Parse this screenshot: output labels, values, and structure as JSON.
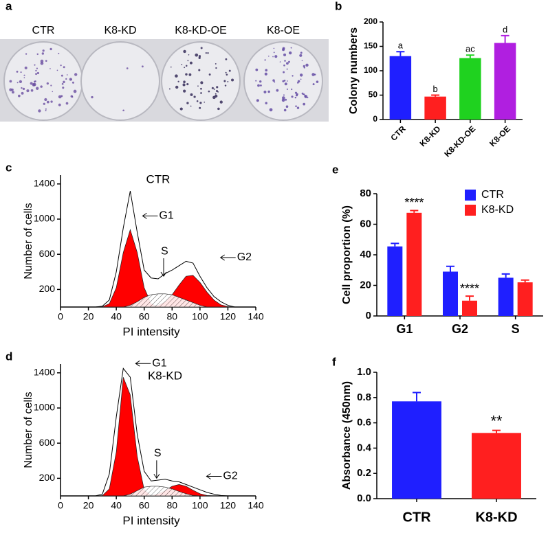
{
  "chart_data": [
    {
      "type": "image",
      "label": "a",
      "categories": [
        "CTR",
        "K8-KD",
        "K8-KD-OE",
        "K8-OE"
      ]
    },
    {
      "type": "bar",
      "label": "b",
      "ylabel": "Colony numbers",
      "categories": [
        "CTR",
        "K8-KD",
        "K8-KD-OE",
        "K8-OE"
      ],
      "values": [
        130,
        47,
        126,
        157
      ],
      "errors": [
        9,
        3,
        6,
        15
      ],
      "colors": [
        "#1f1fff",
        "#ff1f1f",
        "#1fd21f",
        "#b01fe0"
      ],
      "annotations": [
        "a",
        "b",
        "ac",
        "d"
      ],
      "ylim": [
        0,
        200
      ],
      "yticks": [
        0,
        50,
        100,
        150,
        200
      ]
    },
    {
      "type": "area",
      "label": "c",
      "title": "CTR",
      "xlabel": "PI intensity",
      "ylabel": "Number of cells",
      "x": [
        25,
        30,
        35,
        40,
        45,
        50,
        55,
        60,
        65,
        70,
        75,
        80,
        85,
        90,
        95,
        100,
        105,
        110,
        115,
        120,
        125
      ],
      "series": [
        {
          "color": "#000000",
          "values": [
            0,
            10,
            80,
            400,
            900,
            1320,
            850,
            420,
            330,
            320,
            380,
            420,
            470,
            520,
            500,
            350,
            220,
            120,
            60,
            20,
            0
          ]
        },
        {
          "name": "G1",
          "color": "#ff0000",
          "values": [
            0,
            3,
            38,
            220,
            620,
            880,
            620,
            220,
            38,
            3,
            0,
            0,
            0,
            0,
            0,
            0,
            0,
            0,
            0,
            0,
            0
          ]
        },
        {
          "name": "S",
          "color": "#ffffff",
          "pattern": "hatch",
          "values": [
            0,
            0,
            0,
            0,
            0,
            20,
            60,
            110,
            140,
            150,
            150,
            140,
            110,
            80,
            50,
            20,
            0,
            0,
            0,
            0,
            0
          ]
        },
        {
          "name": "G2",
          "color": "#ff0000",
          "values": [
            0,
            0,
            0,
            0,
            0,
            0,
            0,
            0,
            0,
            20,
            60,
            140,
            250,
            350,
            360,
            280,
            170,
            80,
            25,
            5,
            0
          ]
        }
      ],
      "xlim": [
        0,
        140
      ],
      "xticks": [
        0,
        20,
        40,
        60,
        80,
        100,
        120,
        140
      ],
      "ylim": [
        0,
        1500
      ],
      "yticks": [
        200,
        600,
        1000,
        1400
      ]
    },
    {
      "type": "area",
      "label": "d",
      "title": "K8-KD",
      "xlabel": "PI intensity",
      "ylabel": "Number of cells",
      "x": [
        25,
        30,
        35,
        40,
        45,
        50,
        55,
        60,
        65,
        70,
        75,
        80,
        85,
        90,
        95,
        100,
        105,
        110,
        115,
        120,
        125
      ],
      "series": [
        {
          "color": "#000000",
          "values": [
            0,
            20,
            250,
            900,
            1450,
            1350,
            700,
            280,
            170,
            180,
            190,
            170,
            160,
            130,
            100,
            70,
            40,
            20,
            5,
            0,
            0
          ]
        },
        {
          "name": "G1",
          "color": "#ff0000",
          "values": [
            0,
            3,
            80,
            500,
            1350,
            1150,
            450,
            70,
            5,
            0,
            0,
            0,
            0,
            0,
            0,
            0,
            0,
            0,
            0,
            0,
            0
          ]
        },
        {
          "name": "S",
          "color": "#ffffff",
          "pattern": "hatch",
          "values": [
            0,
            0,
            0,
            0,
            0,
            20,
            60,
            100,
            110,
            110,
            100,
            80,
            50,
            25,
            5,
            0,
            0,
            0,
            0,
            0,
            0
          ]
        },
        {
          "name": "G2",
          "color": "#ff0000",
          "values": [
            0,
            0,
            0,
            0,
            0,
            0,
            0,
            0,
            5,
            25,
            60,
            110,
            130,
            110,
            65,
            25,
            5,
            0,
            0,
            0,
            0
          ]
        }
      ],
      "xlim": [
        0,
        140
      ],
      "xticks": [
        0,
        20,
        40,
        60,
        80,
        100,
        120,
        140
      ],
      "ylim": [
        0,
        1500
      ],
      "yticks": [
        200,
        600,
        1000,
        1400
      ]
    },
    {
      "type": "grouped_bar",
      "label": "e",
      "ylabel": "Cell proportion (%)",
      "categories": [
        "G1",
        "G2",
        "S"
      ],
      "series": [
        {
          "name": "CTR",
          "color": "#1f1fff",
          "values": [
            45.5,
            29,
            25
          ],
          "errors": [
            2,
            3.5,
            2.5
          ],
          "annotations": [
            null,
            null,
            null
          ]
        },
        {
          "name": "K8-KD",
          "color": "#ff1f1f",
          "values": [
            67.5,
            10,
            22
          ],
          "errors": [
            1.5,
            3,
            1.5
          ],
          "annotations": [
            "****",
            "****",
            null
          ]
        }
      ],
      "legend": "upper right",
      "ylim": [
        0,
        80
      ],
      "yticks": [
        0,
        20,
        40,
        60,
        80
      ]
    },
    {
      "type": "bar",
      "label": "f",
      "ylabel": "Absorbance (450nm)",
      "categories": [
        "CTR",
        "K8-KD"
      ],
      "values": [
        0.77,
        0.52
      ],
      "errors": [
        0.07,
        0.02
      ],
      "colors": [
        "#1f1fff",
        "#ff1f1f"
      ],
      "annotations": [
        null,
        "**"
      ],
      "ylim": [
        0,
        1.0
      ],
      "yticks": [
        {
          "value": 0,
          "label": "0.0"
        },
        0.2,
        0.4,
        0.6,
        0.8,
        {
          "value": 1.0,
          "label": "1.0"
        }
      ]
    }
  ]
}
